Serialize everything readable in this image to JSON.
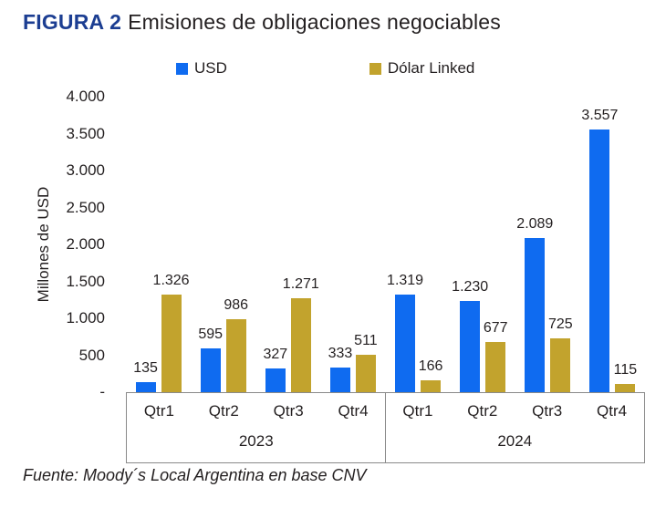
{
  "title": {
    "prefix": "FIGURA 2",
    "main": "Emisiones de obligaciones negociables"
  },
  "legend": {
    "items": [
      {
        "label": "USD"
      },
      {
        "label": "Dólar Linked"
      }
    ]
  },
  "y_axis": {
    "label": "Millones de USD",
    "ticks": [
      {
        "label": "4.000",
        "value": 4000
      },
      {
        "label": "3.500",
        "value": 3500
      },
      {
        "label": "3.000",
        "value": 3000
      },
      {
        "label": "2.500",
        "value": 2500
      },
      {
        "label": "2.000",
        "value": 2000
      },
      {
        "label": "1.500",
        "value": 1500
      },
      {
        "label": "1.000",
        "value": 1000
      },
      {
        "label": "500",
        "value": 500
      },
      {
        "label": "-",
        "value": 0
      }
    ]
  },
  "x_axis": {
    "quarters": [
      "Qtr1",
      "Qtr2",
      "Qtr3",
      "Qtr4",
      "Qtr1",
      "Qtr2",
      "Qtr3",
      "Qtr4"
    ],
    "years": [
      "2023",
      "2024"
    ]
  },
  "footer": "Fuente: Moody´s Local Argentina en base CNV",
  "colors": {
    "usd": "#0f6bf0",
    "dolar_linked": "#c2a32d",
    "title_accent": "#1c3e92",
    "text": "#231f20",
    "axis_border": "#8a8a8a"
  },
  "chart_data": {
    "type": "bar",
    "title": "Emisiones de obligaciones negociables",
    "xlabel": "",
    "ylabel": "Millones de USD",
    "ylim": [
      0,
      4000
    ],
    "grid": false,
    "legend_position": "top",
    "group_years": [
      "2023",
      "2024"
    ],
    "categories": [
      "2023 Qtr1",
      "2023 Qtr2",
      "2023 Qtr3",
      "2023 Qtr4",
      "2024 Qtr1",
      "2024 Qtr2",
      "2024 Qtr3",
      "2024 Qtr4"
    ],
    "series": [
      {
        "name": "USD",
        "color": "#0f6bf0",
        "values": [
          135,
          595,
          327,
          333,
          1319,
          1230,
          2089,
          3557
        ],
        "labels": [
          "135",
          "595",
          "327",
          "333",
          "1.319",
          "1.230",
          "2.089",
          "3.557"
        ]
      },
      {
        "name": "Dólar Linked",
        "color": "#c2a32d",
        "values": [
          1326,
          986,
          1271,
          511,
          166,
          677,
          725,
          115
        ],
        "labels": [
          "1.326",
          "986",
          "1.271",
          "511",
          "166",
          "677",
          "725",
          "115"
        ]
      }
    ]
  }
}
